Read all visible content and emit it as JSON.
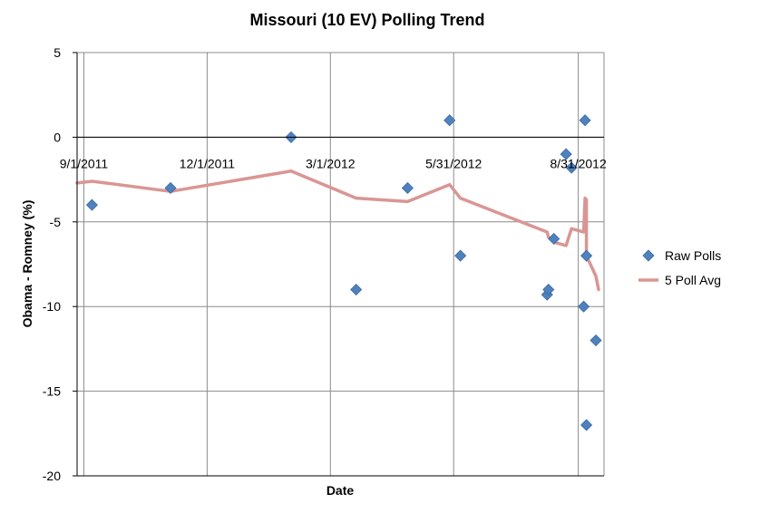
{
  "chart_data": {
    "type": "scatter",
    "title": "Missouri (10 EV) Polling Trend",
    "xlabel": "Date",
    "ylabel": "Obama - Romney (%)",
    "ylim": [
      -20,
      5
    ],
    "yticks": [
      5,
      0,
      -5,
      -10,
      -15,
      -20
    ],
    "xlim": [
      "2011-08-27",
      "2012-09-19"
    ],
    "xticks": [
      "9/1/2011",
      "12/1/2011",
      "3/1/2012",
      "5/31/2012",
      "8/31/2012"
    ],
    "grid": true,
    "legend_position": "right",
    "series": [
      {
        "name": "Raw Polls",
        "kind": "points",
        "marker": "diamond",
        "color": "#4f81bd",
        "points": [
          {
            "x": "2011-09-07",
            "y": -4
          },
          {
            "x": "2011-11-04",
            "y": -3
          },
          {
            "x": "2012-02-01",
            "y": 0
          },
          {
            "x": "2012-03-20",
            "y": -9
          },
          {
            "x": "2012-04-27",
            "y": -3
          },
          {
            "x": "2012-05-28",
            "y": 1
          },
          {
            "x": "2012-06-05",
            "y": -7
          },
          {
            "x": "2012-08-08",
            "y": -9.3
          },
          {
            "x": "2012-08-09",
            "y": -9
          },
          {
            "x": "2012-08-13",
            "y": -6
          },
          {
            "x": "2012-08-22",
            "y": -1
          },
          {
            "x": "2012-08-26",
            "y": -1.8
          },
          {
            "x": "2012-09-04",
            "y": -10
          },
          {
            "x": "2012-09-05",
            "y": 1
          },
          {
            "x": "2012-09-06",
            "y": -7
          },
          {
            "x": "2012-09-06",
            "y": -17
          },
          {
            "x": "2012-09-13",
            "y": -12
          }
        ]
      },
      {
        "name": "5 Poll Avg",
        "kind": "line",
        "color": "#d99694",
        "points": [
          {
            "x": "2011-08-27",
            "y": -2.7
          },
          {
            "x": "2011-09-07",
            "y": -2.6
          },
          {
            "x": "2011-11-04",
            "y": -3.2
          },
          {
            "x": "2012-02-01",
            "y": -2
          },
          {
            "x": "2012-03-20",
            "y": -3.6
          },
          {
            "x": "2012-04-27",
            "y": -3.8
          },
          {
            "x": "2012-05-28",
            "y": -2.8
          },
          {
            "x": "2012-06-05",
            "y": -3.6
          },
          {
            "x": "2012-08-08",
            "y": -5.6
          },
          {
            "x": "2012-08-09",
            "y": -5.9
          },
          {
            "x": "2012-08-13",
            "y": -6.2
          },
          {
            "x": "2012-08-22",
            "y": -6.4
          },
          {
            "x": "2012-08-26",
            "y": -5.4
          },
          {
            "x": "2012-09-04",
            "y": -5.6
          },
          {
            "x": "2012-09-05",
            "y": -3.6
          },
          {
            "x": "2012-09-06",
            "y": -3.7
          },
          {
            "x": "2012-09-06",
            "y": -7
          },
          {
            "x": "2012-09-13",
            "y": -8.2
          },
          {
            "x": "2012-09-15",
            "y": -9
          }
        ]
      }
    ]
  }
}
